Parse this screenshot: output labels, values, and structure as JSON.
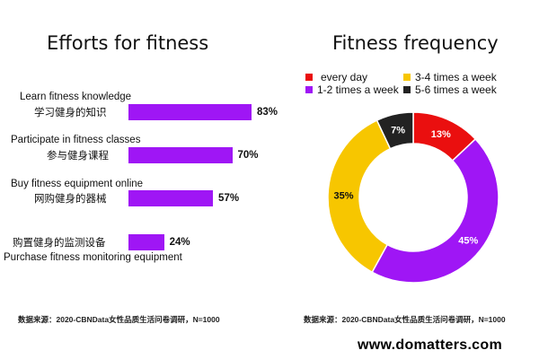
{
  "chart_data": [
    {
      "type": "bar",
      "orientation": "horizontal",
      "title": "Efforts for fitness",
      "categories": [
        {
          "en": "Learn fitness knowledge",
          "zh": "学习健身的知识"
        },
        {
          "en": "Participate in fitness classes",
          "zh": "参与健身课程"
        },
        {
          "en": "Buy fitness equipment online",
          "zh": "网购健身的器械"
        },
        {
          "en": "Purchase fitness monitoring equipment",
          "zh": "购置健身的监测设备"
        }
      ],
      "values": [
        83,
        70,
        57,
        24
      ],
      "value_labels": [
        "83%",
        "70%",
        "57%",
        "24%"
      ],
      "xlim": [
        0,
        100
      ],
      "color": "#9f16f5",
      "source": "数据来源：2020-CBNData女性品质生活问卷调研，N=1000"
    },
    {
      "type": "pie",
      "donut": true,
      "title": "Fitness frequency",
      "slices": [
        {
          "name": "every day",
          "value": 13,
          "label": "13%",
          "color": "#ea0f0f"
        },
        {
          "name": "1-2 times a week",
          "value": 45,
          "label": "45%",
          "color": "#9f16f5"
        },
        {
          "name": "3-4 times a week",
          "value": 35,
          "label": "35%",
          "color": "#f7c600"
        },
        {
          "name": "5-6 times a week",
          "value": 7,
          "label": "7%",
          "color": "#222222"
        }
      ],
      "legend_placement": "top",
      "source": "数据来源：2020-CBNData女性品质生活问卷调研，N=1000"
    }
  ],
  "watermark": "www.domatters.com"
}
